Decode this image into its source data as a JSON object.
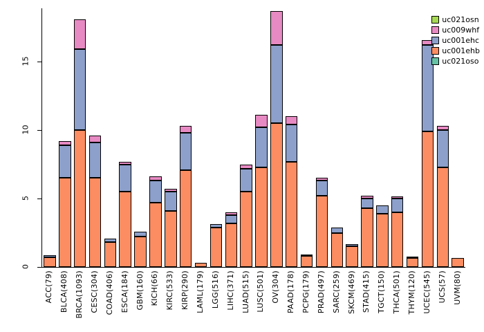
{
  "chart_data": {
    "type": "bar",
    "stacked": true,
    "title": "",
    "xlabel": "",
    "ylabel": "",
    "ylim": [
      0,
      18.9
    ],
    "yticks": [
      0,
      5,
      10,
      15
    ],
    "grid": false,
    "legend_position": "top-right",
    "categories": [
      "ACC(79)",
      "BLCA(408)",
      "BRCA(1093)",
      "CESC(304)",
      "COAD(406)",
      "ESCA(184)",
      "GBM(160)",
      "KICH(66)",
      "KIRC(533)",
      "KIRP(290)",
      "LAML(179)",
      "LGG(516)",
      "LIHC(371)",
      "LUAD(515)",
      "LUSC(501)",
      "OV(304)",
      "PAAD(178)",
      "PCPG(179)",
      "PRAD(497)",
      "SARC(259)",
      "SKCM(469)",
      "STAD(415)",
      "TGCT(150)",
      "THCA(501)",
      "THYM(120)",
      "UCEC(545)",
      "UCS(57)",
      "UVM(80)"
    ],
    "series": [
      {
        "name": "uc001ehb",
        "color": "#FC8D62",
        "values": [
          0.7,
          6.5,
          10.0,
          6.5,
          1.8,
          5.5,
          2.2,
          4.7,
          4.1,
          7.1,
          0.3,
          2.9,
          3.2,
          5.5,
          7.3,
          10.5,
          7.7,
          0.8,
          5.2,
          2.5,
          1.5,
          4.3,
          3.9,
          4.0,
          0.65,
          9.9,
          7.3,
          0.65
        ]
      },
      {
        "name": "uc001ehc",
        "color": "#8DA0CB",
        "values": [
          0.15,
          2.4,
          5.9,
          2.6,
          0.25,
          2.0,
          0.4,
          1.6,
          1.4,
          2.7,
          0,
          0.25,
          0.6,
          1.7,
          2.9,
          5.7,
          2.7,
          0.1,
          1.1,
          0.4,
          0.15,
          0.7,
          0.6,
          1.0,
          0.1,
          6.3,
          2.7,
          0
        ]
      },
      {
        "name": "uc009whf",
        "color": "#E78AC3",
        "values": [
          0,
          0.3,
          2.2,
          0.5,
          0,
          0.2,
          0,
          0.3,
          0.2,
          0.5,
          0,
          0,
          0.2,
          0.3,
          0.9,
          2.5,
          0.6,
          0,
          0.2,
          0,
          0,
          0.2,
          0,
          0.15,
          0,
          0.4,
          0.3,
          0
        ]
      },
      {
        "name": "uc021oso",
        "color": "#66C2A5",
        "values": [
          0,
          0,
          0,
          0,
          0,
          0,
          0,
          0,
          0,
          0,
          0,
          0,
          0,
          0,
          0,
          0,
          0,
          0,
          0,
          0,
          0,
          0,
          0,
          0,
          0,
          0,
          0,
          0
        ]
      },
      {
        "name": "uc021osn",
        "color": "#A6D854",
        "values": [
          0,
          0,
          0,
          0,
          0,
          0,
          0,
          0,
          0,
          0,
          0,
          0,
          0,
          0,
          0,
          0,
          0,
          0,
          0,
          0,
          0,
          0,
          0,
          0,
          0,
          0,
          0,
          0
        ]
      }
    ],
    "legend": [
      {
        "label": "uc021osn",
        "color": "#A6D854"
      },
      {
        "label": "uc009whf",
        "color": "#E78AC3"
      },
      {
        "label": "uc001ehc",
        "color": "#8DA0CB"
      },
      {
        "label": "uc001ehb",
        "color": "#FC8D62"
      },
      {
        "label": "uc021oso",
        "color": "#66C2A5"
      }
    ]
  }
}
